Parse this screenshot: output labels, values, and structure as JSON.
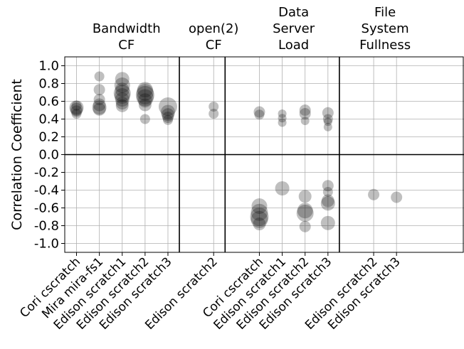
{
  "chart_data": {
    "type": "scatter",
    "ylabel": "Correlation Coefficient",
    "ylim": [
      -1.1,
      1.1
    ],
    "yticks": [
      "-1.0",
      "-0.8",
      "-0.6",
      "-0.4",
      "-0.2",
      "0.0",
      "0.2",
      "0.4",
      "0.6",
      "0.8",
      "1.0"
    ],
    "grid": true,
    "groups": [
      {
        "title_lines": [
          "Bandwidth",
          "CF"
        ],
        "categories": [
          "Cori cscratch",
          "Mira mira-fs1",
          "Edison scratch1",
          "Edison scratch2",
          "Edison scratch3"
        ],
        "points": [
          {
            "cat": 0,
            "y": 0.53,
            "size": 10
          },
          {
            "cat": 0,
            "y": 0.51,
            "size": 9
          },
          {
            "cat": 0,
            "y": 0.49,
            "size": 8
          },
          {
            "cat": 0,
            "y": 0.46,
            "size": 7
          },
          {
            "cat": 0,
            "y": 0.55,
            "size": 7
          },
          {
            "cat": 1,
            "y": 0.88,
            "size": 7
          },
          {
            "cat": 1,
            "y": 0.73,
            "size": 8
          },
          {
            "cat": 1,
            "y": 0.62,
            "size": 8
          },
          {
            "cat": 1,
            "y": 0.56,
            "size": 9
          },
          {
            "cat": 1,
            "y": 0.53,
            "size": 10
          },
          {
            "cat": 1,
            "y": 0.51,
            "size": 9
          },
          {
            "cat": 2,
            "y": 0.85,
            "size": 10
          },
          {
            "cat": 2,
            "y": 0.78,
            "size": 11
          },
          {
            "cat": 2,
            "y": 0.73,
            "size": 10
          },
          {
            "cat": 2,
            "y": 0.69,
            "size": 12
          },
          {
            "cat": 2,
            "y": 0.66,
            "size": 11
          },
          {
            "cat": 2,
            "y": 0.62,
            "size": 10
          },
          {
            "cat": 2,
            "y": 0.58,
            "size": 9
          },
          {
            "cat": 2,
            "y": 0.55,
            "size": 9
          },
          {
            "cat": 3,
            "y": 0.73,
            "size": 11
          },
          {
            "cat": 3,
            "y": 0.7,
            "size": 12
          },
          {
            "cat": 3,
            "y": 0.67,
            "size": 13
          },
          {
            "cat": 3,
            "y": 0.64,
            "size": 12
          },
          {
            "cat": 3,
            "y": 0.61,
            "size": 10
          },
          {
            "cat": 3,
            "y": 0.56,
            "size": 9
          },
          {
            "cat": 3,
            "y": 0.4,
            "size": 7
          },
          {
            "cat": 4,
            "y": 0.54,
            "size": 13
          },
          {
            "cat": 4,
            "y": 0.48,
            "size": 10
          },
          {
            "cat": 4,
            "y": 0.45,
            "size": 9
          },
          {
            "cat": 4,
            "y": 0.42,
            "size": 8
          },
          {
            "cat": 4,
            "y": 0.39,
            "size": 7
          }
        ]
      },
      {
        "title_lines": [
          "open(2)",
          "CF"
        ],
        "categories": [
          "Edison scratch2"
        ],
        "points": [
          {
            "cat": 0,
            "y": 0.54,
            "size": 7
          },
          {
            "cat": 0,
            "y": 0.46,
            "size": 7
          }
        ]
      },
      {
        "title_lines": [
          "Data",
          "Server",
          "Load"
        ],
        "categories": [
          "Cori cscratch",
          "Edison scratch1",
          "Edison scratch2",
          "Edison scratch3"
        ],
        "points": [
          {
            "cat": 0,
            "y": 0.48,
            "size": 8
          },
          {
            "cat": 0,
            "y": 0.45,
            "size": 7
          },
          {
            "cat": 1,
            "y": 0.46,
            "size": 6
          },
          {
            "cat": 1,
            "y": 0.41,
            "size": 6
          },
          {
            "cat": 1,
            "y": 0.36,
            "size": 6
          },
          {
            "cat": 2,
            "y": 0.5,
            "size": 8
          },
          {
            "cat": 2,
            "y": 0.46,
            "size": 8
          },
          {
            "cat": 2,
            "y": 0.38,
            "size": 6
          },
          {
            "cat": 3,
            "y": 0.47,
            "size": 8
          },
          {
            "cat": 3,
            "y": 0.4,
            "size": 7
          },
          {
            "cat": 3,
            "y": 0.37,
            "size": 6
          },
          {
            "cat": 3,
            "y": 0.31,
            "size": 6
          },
          {
            "cat": 0,
            "y": -0.58,
            "size": 11
          },
          {
            "cat": 0,
            "y": -0.65,
            "size": 12
          },
          {
            "cat": 0,
            "y": -0.7,
            "size": 13
          },
          {
            "cat": 0,
            "y": -0.73,
            "size": 12
          },
          {
            "cat": 0,
            "y": -0.78,
            "size": 9
          },
          {
            "cat": 1,
            "y": -0.38,
            "size": 10
          },
          {
            "cat": 2,
            "y": -0.47,
            "size": 9
          },
          {
            "cat": 2,
            "y": -0.63,
            "size": 11
          },
          {
            "cat": 2,
            "y": -0.66,
            "size": 12
          },
          {
            "cat": 2,
            "y": -0.81,
            "size": 8
          },
          {
            "cat": 3,
            "y": -0.35,
            "size": 8
          },
          {
            "cat": 3,
            "y": -0.42,
            "size": 7
          },
          {
            "cat": 3,
            "y": -0.52,
            "size": 9
          },
          {
            "cat": 3,
            "y": -0.55,
            "size": 10
          },
          {
            "cat": 3,
            "y": -0.77,
            "size": 10
          }
        ]
      },
      {
        "title_lines": [
          "File",
          "System",
          "Fullness"
        ],
        "categories": [
          "Edison scratch2",
          "Edison scratch3"
        ],
        "points": [
          {
            "cat": 0,
            "y": -0.45,
            "size": 8
          },
          {
            "cat": 1,
            "y": -0.48,
            "size": 8
          }
        ]
      }
    ]
  }
}
